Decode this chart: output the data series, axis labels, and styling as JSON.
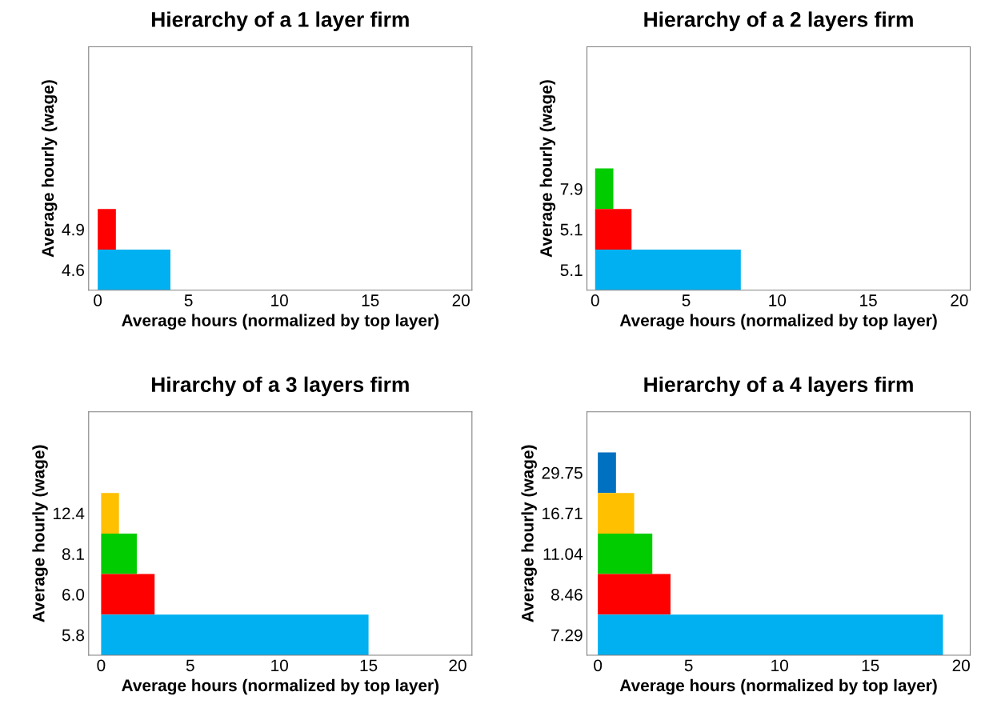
{
  "chart_data": [
    {
      "type": "bar",
      "orientation": "horizontal",
      "title": "Hierarchy of a 1 layer firm",
      "xlabel": "Average hours (normalized by top layer)",
      "ylabel": "Average hourly (wage)",
      "categories": [
        "4.9",
        "4.6"
      ],
      "values": [
        1,
        4
      ],
      "colors": [
        "#ff0000",
        "#00b0f0"
      ],
      "xlim": [
        -0.5,
        20.6
      ],
      "xticks": [
        0,
        5,
        10,
        15,
        20
      ],
      "grid": false,
      "legend": false
    },
    {
      "type": "bar",
      "orientation": "horizontal",
      "title": "Hierarchy of a 2 layers firm",
      "xlabel": "Average hours (normalized by top layer)",
      "ylabel": "Average hourly (wage)",
      "categories": [
        "7.9",
        "5.1",
        "5.1"
      ],
      "values": [
        1,
        2,
        8
      ],
      "colors": [
        "#00cc00",
        "#ff0000",
        "#00b0f0"
      ],
      "xlim": [
        -0.45,
        20.6
      ],
      "xticks": [
        0,
        5,
        10,
        15,
        20
      ],
      "grid": false,
      "legend": false
    },
    {
      "type": "bar",
      "orientation": "horizontal",
      "title": "Hirarchy of a 3 layers firm",
      "xlabel": "Average hours (normalized by top layer)",
      "ylabel": "Average hourly (wage)",
      "categories": [
        "12.4",
        "8.1",
        "6.0",
        "5.8"
      ],
      "values": [
        1,
        2,
        3,
        15
      ],
      "colors": [
        "#ffc000",
        "#00cc00",
        "#ff0000",
        "#00b0f0"
      ],
      "xlim": [
        -0.7,
        20.8
      ],
      "xticks": [
        0,
        5,
        10,
        15,
        20
      ],
      "grid": false,
      "legend": false
    },
    {
      "type": "bar",
      "orientation": "horizontal",
      "title": "Hierarchy of a 4 layers firm",
      "xlabel": "Average hours (normalized by top layer)",
      "ylabel": "Average hourly (wage)",
      "categories": [
        "29.75",
        "16.71",
        "11.04",
        "8.46",
        "7.29"
      ],
      "values": [
        1,
        2,
        3,
        4,
        19
      ],
      "colors": [
        "#0070c0",
        "#ffc000",
        "#00cc00",
        "#ff0000",
        "#00b0f0"
      ],
      "xlim": [
        -0.6,
        20.5
      ],
      "xticks": [
        0,
        5,
        10,
        15,
        20
      ],
      "grid": false,
      "legend": false
    }
  ]
}
